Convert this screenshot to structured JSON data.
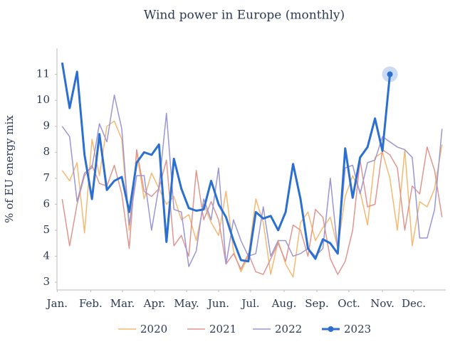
{
  "chart_data": {
    "type": "line",
    "title": "Wind power in Europe (monthly)",
    "y_label": "% of EU energy mix",
    "x": [
      1,
      2,
      3,
      4,
      5,
      6,
      7,
      8,
      9,
      10,
      11,
      12,
      13,
      14,
      15,
      16,
      17,
      18,
      19,
      20,
      21,
      22,
      23,
      24,
      25,
      26,
      27,
      28,
      29,
      30,
      31,
      32,
      33,
      34,
      35,
      36,
      37,
      38,
      39,
      40,
      41,
      42,
      43,
      44,
      45,
      46,
      47,
      48,
      49,
      50,
      51,
      52
    ],
    "xlim": [
      0.3,
      52.5
    ],
    "xticks": [
      {
        "value": 0.33,
        "label": "Jan."
      },
      {
        "value": 4.83,
        "label": "Feb."
      },
      {
        "value": 9.1,
        "label": "Mar."
      },
      {
        "value": 13.4,
        "label": "Apr."
      },
      {
        "value": 17.7,
        "label": "May."
      },
      {
        "value": 22.0,
        "label": "Jun."
      },
      {
        "value": 26.3,
        "label": "Jul."
      },
      {
        "value": 30.8,
        "label": "Aug."
      },
      {
        "value": 35.2,
        "label": "Sep."
      },
      {
        "value": 39.5,
        "label": "Oct."
      },
      {
        "value": 44.0,
        "label": "Nov."
      },
      {
        "value": 48.2,
        "label": "Dec."
      }
    ],
    "ylim": [
      2.7,
      12
    ],
    "yticks": [
      3,
      4,
      5,
      6,
      7,
      8,
      9,
      10,
      11
    ],
    "grid": false,
    "legend": "bottom",
    "series": [
      {
        "name": "2020",
        "color": "#f5b971",
        "width": 1.5,
        "values": [
          7.3,
          6.9,
          7.6,
          4.9,
          8.5,
          7.1,
          9.0,
          9.2,
          8.5,
          5.0,
          8.0,
          6.2,
          7.2,
          6.6,
          6.0,
          6.3,
          5.4,
          5.6,
          4.6,
          6.0,
          5.3,
          4.8,
          6.5,
          4.2,
          3.4,
          4.0,
          6.2,
          5.3,
          3.3,
          4.6,
          3.7,
          3.2,
          5.3,
          5.7,
          4.6,
          5.1,
          5.5,
          4.3,
          6.3,
          7.1,
          6.5,
          5.2,
          7.8,
          8.0,
          7.0,
          5.0,
          8.1,
          4.4,
          6.1,
          5.9,
          6.6,
          8.3
        ]
      },
      {
        "name": "2021",
        "color": "#e0958f",
        "width": 1.5,
        "values": [
          6.2,
          4.4,
          6.0,
          7.1,
          7.5,
          6.8,
          6.7,
          7.5,
          6.4,
          4.3,
          8.1,
          6.5,
          6.3,
          6.6,
          7.7,
          4.4,
          4.8,
          4.0,
          7.3,
          5.4,
          6.1,
          5.4,
          3.7,
          4.1,
          3.5,
          4.1,
          3.4,
          3.3,
          3.9,
          4.5,
          3.8,
          5.2,
          5.0,
          4.0,
          5.8,
          5.5,
          3.9,
          3.3,
          3.8,
          5.0,
          7.7,
          5.9,
          6.0,
          8.1,
          7.9,
          7.4,
          5.0,
          6.7,
          6.4,
          8.2,
          7.3,
          5.5
        ]
      },
      {
        "name": "2022",
        "color": "#9b96d4",
        "width": 1.5,
        "values": [
          9.0,
          8.6,
          6.1,
          7.2,
          7.4,
          9.1,
          8.4,
          10.2,
          8.9,
          5.2,
          7.1,
          7.1,
          5.0,
          6.7,
          9.5,
          5.8,
          5.7,
          3.6,
          4.2,
          6.2,
          5.4,
          7.4,
          3.7,
          5.4,
          4.6,
          4.0,
          4.1,
          5.9,
          4.0,
          4.6,
          4.6,
          4.0,
          4.1,
          4.3,
          4.0,
          4.3,
          7.0,
          4.2,
          7.4,
          7.5,
          6.4,
          7.6,
          7.7,
          8.6,
          8.4,
          8.2,
          8.1,
          7.8,
          4.7,
          4.7,
          5.8,
          8.9
        ]
      },
      {
        "name": "2023",
        "color": "#2b6fd1",
        "width": 3,
        "marker": "last",
        "values": [
          11.45,
          9.7,
          11.1,
          7.9,
          6.2,
          8.7,
          6.55,
          6.9,
          7.05,
          5.7,
          7.6,
          8.0,
          7.9,
          8.3,
          4.55,
          7.75,
          6.6,
          5.85,
          5.75,
          5.8,
          6.9,
          6.0,
          5.5,
          4.6,
          3.85,
          3.8,
          5.7,
          5.45,
          5.55,
          5.0,
          5.7,
          7.55,
          6.2,
          4.3,
          3.9,
          4.65,
          4.5,
          4.1,
          8.15,
          6.25,
          7.8,
          8.2,
          9.3,
          8.05,
          11.0,
          null,
          null,
          null,
          null,
          null,
          null,
          null
        ]
      }
    ]
  }
}
